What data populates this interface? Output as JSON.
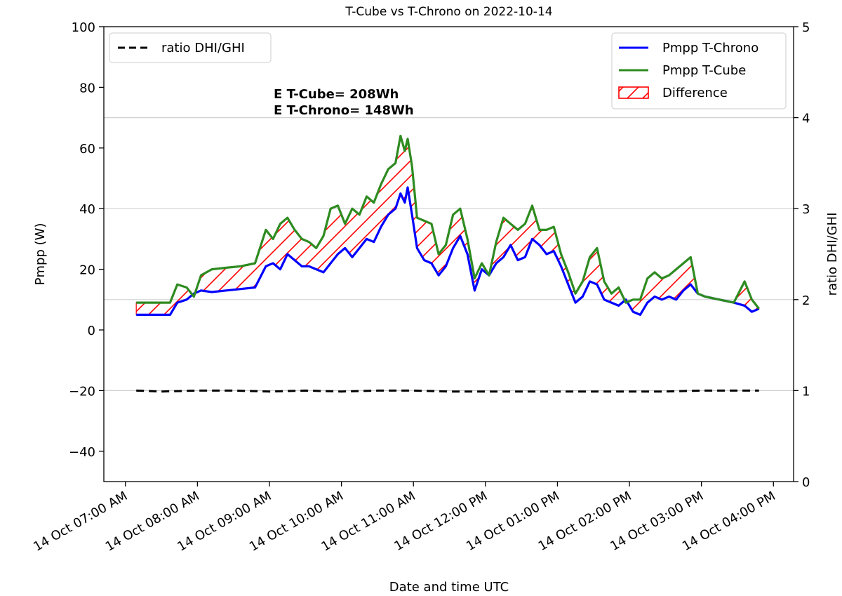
{
  "chart_data": {
    "type": "line",
    "title": "T-Cube vs T-Chrono on 2022-10-14",
    "xlabel": "Date and time UTC",
    "ylabel": "Pmpp (W)",
    "ylabel_right": "ratio DHI/GHI",
    "ylim": [
      -50,
      100
    ],
    "ylim_right": [
      0,
      5
    ],
    "yticks": [
      -40,
      -20,
      0,
      20,
      40,
      60,
      80,
      100
    ],
    "ytick_labels": [
      "−40",
      "−20",
      "0",
      "20",
      "40",
      "60",
      "80",
      "100"
    ],
    "yticks_right": [
      0,
      1,
      2,
      3,
      4,
      5
    ],
    "xlim_hours": [
      6.7,
      16.28
    ],
    "xticks": [
      {
        "hour": 7,
        "label": "14 Oct 07:00 AM"
      },
      {
        "hour": 8,
        "label": "14 Oct 08:00 AM"
      },
      {
        "hour": 9,
        "label": "14 Oct 09:00 AM"
      },
      {
        "hour": 10,
        "label": "14 Oct 10:00 AM"
      },
      {
        "hour": 11,
        "label": "14 Oct 11:00 AM"
      },
      {
        "hour": 12,
        "label": "14 Oct 12:00 PM"
      },
      {
        "hour": 13,
        "label": "14 Oct 01:00 PM"
      },
      {
        "hour": 14,
        "label": "14 Oct 02:00 PM"
      },
      {
        "hour": 15,
        "label": "14 Oct 03:00 PM"
      },
      {
        "hour": 16,
        "label": "14 Oct 04:00 PM"
      }
    ],
    "grid_right_axis": true,
    "annotations": [
      "E T-Cube= 208Wh",
      "E T-Chrono= 148Wh"
    ],
    "legend_left": {
      "placement": "upper-left",
      "entries": [
        "ratio DHI/GHI"
      ]
    },
    "legend_right": {
      "placement": "upper-right",
      "entries": [
        "Pmpp T-Chrono",
        "Pmpp T-Cube",
        "Difference"
      ]
    },
    "series": [
      {
        "name": "Pmpp T-Chrono",
        "color": "#0000ff",
        "x": [
          7.15,
          7.3,
          7.5,
          7.62,
          7.72,
          7.85,
          7.95,
          8.05,
          8.2,
          8.4,
          8.6,
          8.8,
          8.95,
          9.05,
          9.15,
          9.25,
          9.35,
          9.45,
          9.55,
          9.65,
          9.75,
          9.85,
          9.95,
          10.05,
          10.15,
          10.25,
          10.35,
          10.45,
          10.55,
          10.65,
          10.75,
          10.82,
          10.88,
          10.92,
          10.98,
          11.05,
          11.15,
          11.25,
          11.35,
          11.45,
          11.55,
          11.65,
          11.75,
          11.85,
          11.95,
          12.05,
          12.15,
          12.25,
          12.35,
          12.45,
          12.55,
          12.65,
          12.75,
          12.85,
          12.95,
          13.05,
          13.15,
          13.25,
          13.35,
          13.45,
          13.55,
          13.65,
          13.75,
          13.85,
          13.95,
          14.05,
          14.15,
          14.25,
          14.35,
          14.45,
          14.55,
          14.65,
          14.75,
          14.85,
          14.95,
          15.05,
          15.25,
          15.45,
          15.6,
          15.7,
          15.8
        ],
        "values": [
          5,
          5,
          5,
          5,
          9,
          10,
          12,
          13,
          12.5,
          13,
          13.5,
          14,
          21,
          22,
          20,
          25,
          23,
          21,
          21,
          20,
          19,
          22,
          25,
          27,
          24,
          27,
          30,
          29,
          34,
          38,
          40,
          45,
          42,
          47,
          38,
          27,
          23,
          22,
          18,
          21,
          27,
          31,
          25,
          13,
          20,
          18,
          22,
          24,
          28,
          23,
          24,
          30,
          28,
          25,
          26,
          21,
          15,
          9,
          11,
          16,
          15,
          10,
          9,
          8,
          10,
          6,
          5,
          9,
          11,
          10,
          11,
          10,
          13,
          15,
          12,
          11,
          10,
          9,
          8,
          6,
          7
        ]
      },
      {
        "name": "Pmpp T-Cube",
        "color": "#2e8b20",
        "x": [
          7.15,
          7.3,
          7.5,
          7.62,
          7.72,
          7.85,
          7.95,
          8.05,
          8.2,
          8.4,
          8.6,
          8.8,
          8.95,
          9.05,
          9.15,
          9.25,
          9.35,
          9.45,
          9.55,
          9.65,
          9.75,
          9.85,
          9.95,
          10.05,
          10.15,
          10.25,
          10.35,
          10.45,
          10.55,
          10.65,
          10.75,
          10.82,
          10.88,
          10.92,
          10.98,
          11.05,
          11.15,
          11.25,
          11.35,
          11.45,
          11.55,
          11.65,
          11.75,
          11.85,
          11.95,
          12.05,
          12.15,
          12.25,
          12.35,
          12.45,
          12.55,
          12.65,
          12.75,
          12.85,
          12.95,
          13.05,
          13.15,
          13.25,
          13.35,
          13.45,
          13.55,
          13.65,
          13.75,
          13.85,
          13.95,
          14.05,
          14.15,
          14.25,
          14.35,
          14.45,
          14.55,
          14.65,
          14.75,
          14.85,
          14.95,
          15.05,
          15.25,
          15.45,
          15.6,
          15.7,
          15.8
        ],
        "values": [
          9,
          9,
          9,
          9,
          15,
          14,
          11,
          18,
          20,
          20.5,
          21,
          22,
          33,
          30,
          35,
          37,
          33,
          30,
          29,
          27,
          31,
          40,
          41,
          35,
          40,
          38,
          44,
          42,
          48,
          53,
          55,
          64,
          59,
          63,
          54,
          37,
          36,
          35,
          25,
          28,
          38,
          40,
          30,
          17,
          22,
          18,
          29,
          37,
          35,
          33,
          35,
          41,
          33,
          33,
          34,
          25,
          19,
          12,
          16,
          24,
          27,
          16,
          12,
          14,
          9,
          10,
          10,
          17,
          19,
          17,
          18,
          20,
          22,
          24,
          12,
          11,
          10,
          9,
          16,
          10,
          7
        ]
      },
      {
        "name": "ratio DHI/GHI",
        "color": "#000000",
        "style": "dashed",
        "axis": "right",
        "x": [
          7.15,
          7.5,
          8.0,
          8.5,
          9.0,
          9.5,
          10.0,
          10.5,
          11.0,
          11.5,
          12.0,
          12.5,
          13.0,
          13.5,
          14.0,
          14.5,
          15.0,
          15.5,
          15.8
        ],
        "values": [
          1.0,
          0.99,
          1.0,
          1.0,
          0.99,
          1.0,
          0.99,
          1.0,
          1.0,
          0.99,
          0.99,
          0.99,
          0.99,
          0.99,
          0.99,
          0.99,
          1.0,
          1.0,
          1.0
        ]
      }
    ]
  }
}
